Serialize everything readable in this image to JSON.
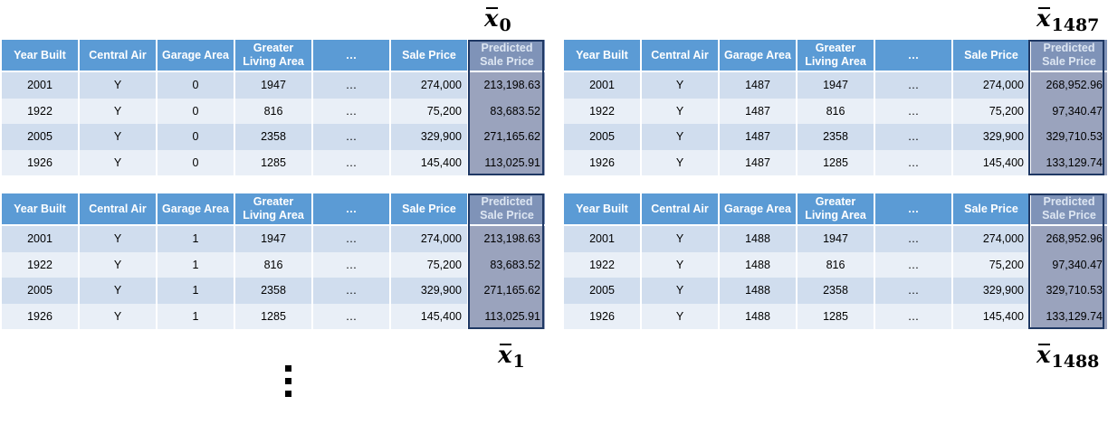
{
  "columns": [
    "Year Built",
    "Central Air",
    "Garage Area",
    "Greater Living Area",
    "…",
    "Sale Price",
    "Predicted Sale Price"
  ],
  "panels": [
    {
      "label_sub": "0",
      "rows": [
        [
          "2001",
          "Y",
          "0",
          "1947",
          "…",
          "274,000",
          "213,198.63"
        ],
        [
          "1922",
          "Y",
          "0",
          "816",
          "…",
          "75,200",
          "83,683.52"
        ],
        [
          "2005",
          "Y",
          "0",
          "2358",
          "…",
          "329,900",
          "271,165.62"
        ],
        [
          "1926",
          "Y",
          "0",
          "1285",
          "…",
          "145,400",
          "113,025.91"
        ]
      ]
    },
    {
      "label_sub": "1",
      "rows": [
        [
          "2001",
          "Y",
          "1",
          "1947",
          "…",
          "274,000",
          "213,198.63"
        ],
        [
          "1922",
          "Y",
          "1",
          "816",
          "…",
          "75,200",
          "83,683.52"
        ],
        [
          "2005",
          "Y",
          "1",
          "2358",
          "…",
          "329,900",
          "271,165.62"
        ],
        [
          "1926",
          "Y",
          "1",
          "1285",
          "…",
          "145,400",
          "113,025.91"
        ]
      ]
    },
    {
      "label_sub": "1487",
      "rows": [
        [
          "2001",
          "Y",
          "1487",
          "1947",
          "…",
          "274,000",
          "268,952.96"
        ],
        [
          "1922",
          "Y",
          "1487",
          "816",
          "…",
          "75,200",
          "97,340.47"
        ],
        [
          "2005",
          "Y",
          "1487",
          "2358",
          "…",
          "329,900",
          "329,710.53"
        ],
        [
          "1926",
          "Y",
          "1487",
          "1285",
          "…",
          "145,400",
          "133,129.74"
        ]
      ]
    },
    {
      "label_sub": "1488",
      "rows": [
        [
          "2001",
          "Y",
          "1488",
          "1947",
          "…",
          "274,000",
          "268,952.96"
        ],
        [
          "1922",
          "Y",
          "1488",
          "816",
          "…",
          "75,200",
          "97,340.47"
        ],
        [
          "2005",
          "Y",
          "1488",
          "2358",
          "…",
          "329,900",
          "329,710.53"
        ],
        [
          "1926",
          "Y",
          "1488",
          "1285",
          "…",
          "145,400",
          "133,129.74"
        ]
      ]
    }
  ],
  "label_letter": "x",
  "colors": {
    "header": "#5b9bd5",
    "row_dark": "#d0ddee",
    "row_light": "#e9eff7",
    "predicted_header": "#7f93b8",
    "predicted_cell": "#9aa3bd",
    "predicted_frame": "#1f3864"
  }
}
